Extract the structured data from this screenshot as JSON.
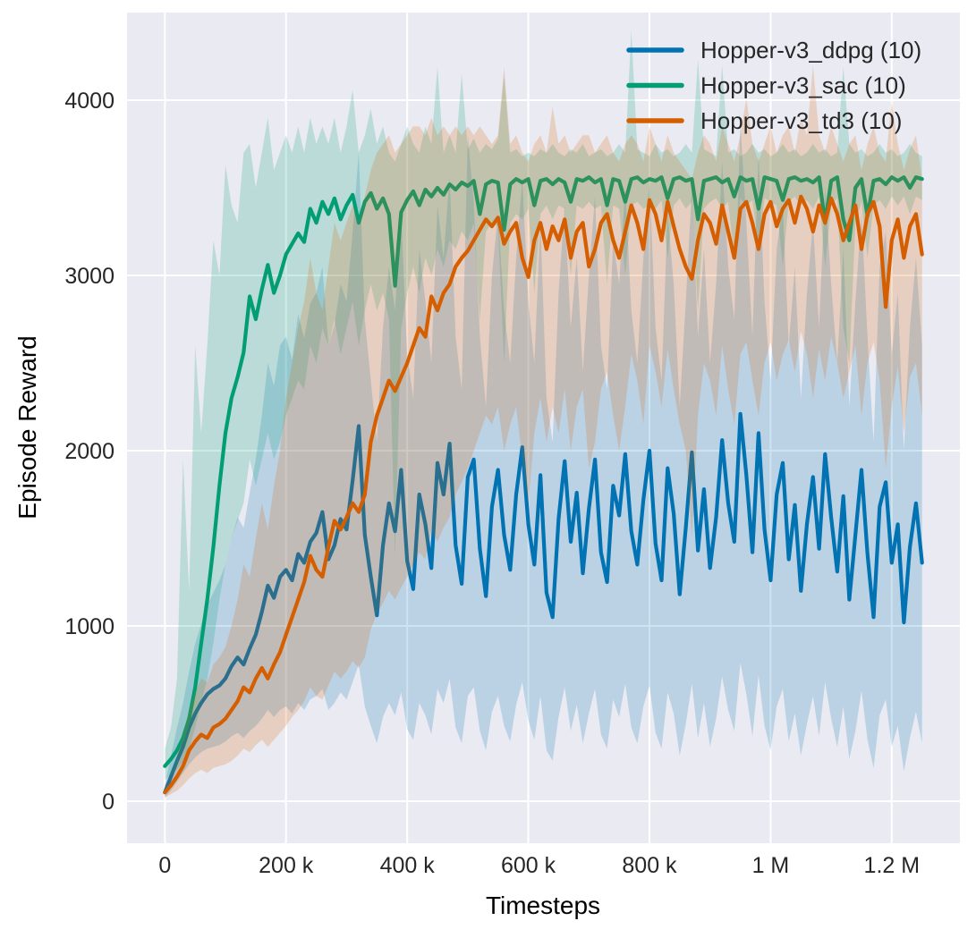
{
  "chart_data": {
    "type": "line",
    "title": "",
    "xlabel": "Timesteps",
    "ylabel": "Episode Reward",
    "grid": true,
    "legend_position": "upper right",
    "xlim": [
      -62500,
      1312500
    ],
    "ylim": [
      -240,
      4500
    ],
    "x_start": 0,
    "x_step": 10000,
    "band_opacity": 0.2,
    "line_width": 4.2,
    "colors": {
      "figure_background": "#ffffff",
      "axes_background": "#eaeaf2",
      "grid": "#ffffff",
      "text": "#262626"
    },
    "xticks": [
      {
        "value": 0,
        "label": "0"
      },
      {
        "value": 200000,
        "label": "200 k"
      },
      {
        "value": 400000,
        "label": "400 k"
      },
      {
        "value": 600000,
        "label": "600 k"
      },
      {
        "value": 800000,
        "label": "800 k"
      },
      {
        "value": 1000000,
        "label": "1 M"
      },
      {
        "value": 1200000,
        "label": "1.2 M"
      }
    ],
    "yticks": [
      {
        "value": 0,
        "label": "0"
      },
      {
        "value": 1000,
        "label": "1000"
      },
      {
        "value": 2000,
        "label": "2000"
      },
      {
        "value": 3000,
        "label": "3000"
      },
      {
        "value": 4000,
        "label": "4000"
      }
    ],
    "series": [
      {
        "name": "Hopper-v3_ddpg (10)",
        "color": "#0173b2",
        "mean": [
          50,
          140,
          230,
          310,
          420,
          500,
          560,
          610,
          640,
          660,
          700,
          770,
          820,
          780,
          870,
          950,
          1080,
          1230,
          1160,
          1280,
          1320,
          1260,
          1410,
          1360,
          1480,
          1530,
          1650,
          1380,
          1460,
          1610,
          1550,
          1830,
          2140,
          1520,
          1280,
          1060,
          1460,
          1700,
          1540,
          1890,
          1370,
          1210,
          1750,
          1580,
          1330,
          1930,
          1750,
          2040,
          1460,
          1240,
          1850,
          1950,
          1440,
          1170,
          1680,
          1890,
          1520,
          1320,
          1750,
          2020,
          1580,
          1350,
          1860,
          1190,
          1050,
          1610,
          1940,
          1480,
          1760,
          1300,
          1670,
          1950,
          1420,
          1250,
          1800,
          1630,
          1980,
          1540,
          1350,
          1720,
          2000,
          1470,
          1260,
          1900,
          1640,
          1180,
          1560,
          1990,
          1430,
          1780,
          1330,
          1620,
          2060,
          1700,
          1480,
          2210,
          1860,
          1420,
          2100,
          1550,
          1260,
          1750,
          1930,
          1380,
          1690,
          1200,
          1580,
          1850,
          1440,
          1980,
          1620,
          1310,
          1740,
          1150,
          1520,
          1890,
          1410,
          1050,
          1680,
          1820,
          1360,
          1580,
          1020,
          1450,
          1700,
          1360
        ],
        "band_low": [
          20,
          60,
          110,
          160,
          210,
          250,
          280,
          300,
          310,
          320,
          340,
          370,
          390,
          360,
          400,
          430,
          470,
          520,
          480,
          520,
          540,
          500,
          560,
          520,
          580,
          600,
          640,
          520,
          560,
          620,
          580,
          680,
          780,
          540,
          430,
          330,
          480,
          560,
          490,
          620,
          410,
          350,
          560,
          490,
          380,
          640,
          560,
          700,
          420,
          330,
          600,
          650,
          400,
          290,
          510,
          600,
          430,
          340,
          550,
          680,
          460,
          350,
          600,
          290,
          230,
          480,
          650,
          400,
          550,
          330,
          500,
          640,
          380,
          300,
          580,
          480,
          670,
          420,
          330,
          540,
          660,
          390,
          300,
          620,
          500,
          260,
          440,
          670,
          360,
          560,
          310,
          470,
          710,
          520,
          400,
          790,
          610,
          370,
          720,
          430,
          290,
          540,
          640,
          340,
          500,
          260,
          440,
          600,
          370,
          680,
          470,
          310,
          540,
          240,
          400,
          630,
          350,
          190,
          490,
          580,
          310,
          430,
          170,
          360,
          510,
          330
        ],
        "band_high": [
          90,
          260,
          420,
          560,
          740,
          900,
          1010,
          1120,
          1190,
          1260,
          1350,
          1500,
          1620,
          1560,
          1760,
          1950,
          2200,
          2500,
          2370,
          2600,
          2650,
          2520,
          2780,
          2640,
          2840,
          2900,
          3050,
          2600,
          2720,
          2950,
          2850,
          3250,
          3700,
          2750,
          2400,
          2050,
          2700,
          3050,
          2800,
          3350,
          2550,
          2300,
          3150,
          2850,
          2500,
          3400,
          3100,
          3560,
          2650,
          2350,
          3800,
          3420,
          2650,
          2250,
          3000,
          3350,
          2800,
          2500,
          3100,
          3550,
          2850,
          2500,
          3300,
          2300,
          2050,
          2900,
          3400,
          2700,
          3100,
          2450,
          3000,
          3450,
          2600,
          2350,
          3200,
          2950,
          3500,
          2800,
          2500,
          3100,
          3550,
          2700,
          2400,
          3350,
          2950,
          2250,
          2850,
          3500,
          2650,
          3150,
          2500,
          2950,
          3650,
          3050,
          2750,
          3870,
          3300,
          2650,
          3700,
          2850,
          2400,
          3150,
          3400,
          2600,
          3050,
          2300,
          2900,
          3300,
          2700,
          3500,
          2950,
          2500,
          3150,
          2250,
          2850,
          3350,
          2650,
          2050,
          3050,
          3250,
          2550,
          2900,
          2000,
          2700,
          3100,
          2600
        ]
      },
      {
        "name": "Hopper-v3_sac (10)",
        "color": "#029e73",
        "mean": [
          200,
          240,
          290,
          360,
          470,
          650,
          900,
          1150,
          1450,
          1800,
          2100,
          2300,
          2420,
          2560,
          2880,
          2750,
          2920,
          3060,
          2900,
          3000,
          3120,
          3180,
          3240,
          3190,
          3380,
          3300,
          3420,
          3350,
          3440,
          3320,
          3400,
          3460,
          3300,
          3420,
          3470,
          3380,
          3440,
          3350,
          2940,
          3360,
          3430,
          3480,
          3400,
          3490,
          3450,
          3500,
          3460,
          3520,
          3490,
          3530,
          3510,
          3540,
          3350,
          3520,
          3540,
          3530,
          3260,
          3520,
          3550,
          3530,
          3550,
          3400,
          3540,
          3550,
          3520,
          3550,
          3530,
          3420,
          3550,
          3540,
          3560,
          3530,
          3550,
          3400,
          3550,
          3540,
          3420,
          3550,
          3560,
          3530,
          3550,
          3540,
          3560,
          3440,
          3550,
          3560,
          3540,
          3550,
          3320,
          3540,
          3550,
          3560,
          3530,
          3550,
          3450,
          3560,
          3540,
          3550,
          3380,
          3560,
          3550,
          3540,
          3430,
          3550,
          3560,
          3540,
          3550,
          3530,
          3560,
          3300,
          3540,
          3560,
          3320,
          3200,
          3500,
          3550,
          3340,
          3540,
          3550,
          3520,
          3560,
          3540,
          3560,
          3500,
          3560,
          3550
        ],
        "band_low": [
          120,
          150,
          180,
          230,
          300,
          420,
          560,
          700,
          900,
          1150,
          1350,
          1500,
          1600,
          1700,
          1950,
          1800,
          1950,
          2100,
          1950,
          2050,
          2200,
          2300,
          2400,
          2350,
          2600,
          2500,
          2700,
          2600,
          2750,
          2550,
          2700,
          2850,
          2600,
          2800,
          2950,
          2800,
          2900,
          2750,
          1400,
          2700,
          2900,
          3050,
          2900,
          3100,
          3000,
          3150,
          3050,
          3200,
          3150,
          3250,
          3200,
          3300,
          2750,
          3250,
          3300,
          3280,
          2500,
          3300,
          3350,
          3320,
          3380,
          2900,
          3350,
          3400,
          3320,
          3400,
          3380,
          3000,
          3400,
          3380,
          3420,
          3380,
          3400,
          2950,
          3400,
          3380,
          3000,
          3400,
          3420,
          3380,
          3400,
          3380,
          3430,
          3100,
          3400,
          3440,
          3380,
          3420,
          2800,
          3380,
          3420,
          3440,
          3380,
          3420,
          3100,
          3440,
          3400,
          3430,
          3150,
          3440,
          3420,
          3400,
          3050,
          3420,
          3450,
          3400,
          3430,
          3380,
          3450,
          3050,
          3400,
          3440,
          2700,
          2500,
          3300,
          3420,
          3100,
          3400,
          3430,
          3380,
          3450,
          3400,
          3450,
          3350,
          3450,
          3430
        ],
        "band_high": [
          300,
          420,
          700,
          1950,
          1200,
          2600,
          2100,
          2600,
          3200,
          3000,
          3630,
          3400,
          3300,
          3700,
          3750,
          3500,
          3700,
          3900,
          3600,
          3700,
          3800,
          3700,
          3850,
          3700,
          3900,
          3750,
          3850,
          3750,
          3900,
          3700,
          3850,
          4060,
          3700,
          3800,
          3950,
          3750,
          3850,
          3700,
          3650,
          3750,
          3850,
          3750,
          3700,
          3850,
          3750,
          4190,
          3700,
          3800,
          3700,
          4150,
          3720,
          3780,
          3700,
          3750,
          3720,
          3780,
          4140,
          3700,
          3720,
          3680,
          3700,
          3680,
          3720,
          3700,
          3750,
          3700,
          3680,
          3720,
          3700,
          3750,
          3680,
          3700,
          3720,
          3680,
          3700,
          3750,
          3700,
          4400,
          3720,
          3700,
          3680,
          3750,
          3700,
          3720,
          3680,
          3700,
          3750,
          3700,
          4230,
          3720,
          3700,
          3680,
          4200,
          3700,
          3720,
          3680,
          3700,
          3750,
          3700,
          3720,
          3680,
          3700,
          3750,
          3700,
          3720,
          3680,
          3700,
          3750,
          3700,
          3720,
          3680,
          3700,
          4190,
          3750,
          3700,
          3720,
          3680,
          3700,
          3750,
          3700,
          3720,
          3680,
          3700,
          3750,
          3700,
          3680
        ]
      },
      {
        "name": "Hopper-v3_td3 (10)",
        "color": "#d55e00",
        "mean": [
          50,
          90,
          140,
          200,
          290,
          340,
          380,
          360,
          420,
          440,
          470,
          520,
          570,
          650,
          620,
          700,
          760,
          700,
          780,
          850,
          950,
          1050,
          1150,
          1250,
          1400,
          1320,
          1280,
          1450,
          1600,
          1550,
          1620,
          1700,
          1650,
          1750,
          2050,
          2200,
          2300,
          2400,
          2340,
          2420,
          2500,
          2600,
          2700,
          2650,
          2880,
          2800,
          2900,
          2950,
          3050,
          3100,
          3140,
          3200,
          3260,
          3320,
          3280,
          3330,
          3180,
          3250,
          3300,
          3100,
          2990,
          3200,
          3300,
          3150,
          3280,
          3200,
          3320,
          3100,
          3250,
          3300,
          3050,
          3150,
          3300,
          3350,
          3200,
          3100,
          3250,
          3400,
          3300,
          3150,
          3430,
          3350,
          3200,
          3420,
          3280,
          3150,
          3050,
          2980,
          3200,
          3350,
          3300,
          3180,
          3400,
          3250,
          3100,
          3380,
          3420,
          3300,
          3150,
          3350,
          3420,
          3280,
          3380,
          3430,
          3300,
          3450,
          3380,
          3250,
          3400,
          3300,
          3440,
          3350,
          3200,
          3300,
          3400,
          3150,
          3350,
          3420,
          3280,
          2820,
          3200,
          3320,
          3100,
          3280,
          3350,
          3120
        ],
        "band_low": [
          20,
          40,
          60,
          90,
          130,
          160,
          180,
          160,
          190,
          200,
          210,
          230,
          260,
          300,
          280,
          320,
          350,
          310,
          350,
          390,
          430,
          480,
          520,
          570,
          650,
          600,
          580,
          660,
          740,
          700,
          740,
          800,
          760,
          820,
          980,
          1070,
          1130,
          1200,
          1150,
          1220,
          1280,
          1350,
          1420,
          1380,
          1550,
          1480,
          1560,
          1620,
          1750,
          1820,
          1900,
          2000,
          2100,
          2200,
          2150,
          2250,
          2000,
          2150,
          2250,
          1950,
          1700,
          2100,
          2300,
          2050,
          2250,
          2100,
          2350,
          2000,
          2250,
          2350,
          1900,
          2050,
          2350,
          2450,
          2200,
          2000,
          2250,
          2550,
          2400,
          2150,
          2600,
          2450,
          2250,
          2580,
          2350,
          2150,
          2000,
          1500,
          2200,
          2500,
          2400,
          2200,
          2600,
          2350,
          2150,
          2550,
          2620,
          2400,
          2200,
          2500,
          2620,
          2400,
          2550,
          2630,
          2450,
          2680,
          2550,
          2300,
          2580,
          2400,
          2650,
          2500,
          2300,
          2450,
          2600,
          2200,
          2500,
          2620,
          2400,
          1900,
          2250,
          2480,
          2100,
          2420,
          2500,
          2200
        ],
        "band_high": [
          90,
          160,
          260,
          380,
          520,
          620,
          700,
          680,
          780,
          820,
          880,
          1000,
          1150,
          1350,
          1280,
          1500,
          1700,
          1550,
          1800,
          2000,
          2300,
          2500,
          2700,
          2850,
          3100,
          2900,
          2800,
          3050,
          3300,
          3200,
          3300,
          3400,
          3300,
          3450,
          3600,
          3700,
          3750,
          3800,
          3700,
          3750,
          3800,
          3850,
          3850,
          3800,
          3900,
          3800,
          3850,
          3800,
          3850,
          3800,
          3850,
          3800,
          3850,
          3800,
          3750,
          3800,
          4190,
          3750,
          3800,
          3700,
          3650,
          3750,
          3800,
          3700,
          3960,
          3750,
          3800,
          3700,
          3750,
          3800,
          3800,
          3700,
          3750,
          3800,
          3700,
          3650,
          3750,
          3800,
          3750,
          3650,
          3850,
          3750,
          3650,
          3800,
          3700,
          3650,
          3600,
          3550,
          3700,
          3800,
          3750,
          3650,
          3850,
          3750,
          3650,
          3800,
          4010,
          3750,
          3650,
          3750,
          3850,
          3700,
          3800,
          3850,
          3700,
          3900,
          3800,
          4200,
          3800,
          3700,
          3850,
          3750,
          3650,
          3750,
          3800,
          3600,
          3750,
          3850,
          3700,
          3650,
          3995,
          3750,
          3600,
          3720,
          3800,
          3550
        ]
      }
    ]
  }
}
